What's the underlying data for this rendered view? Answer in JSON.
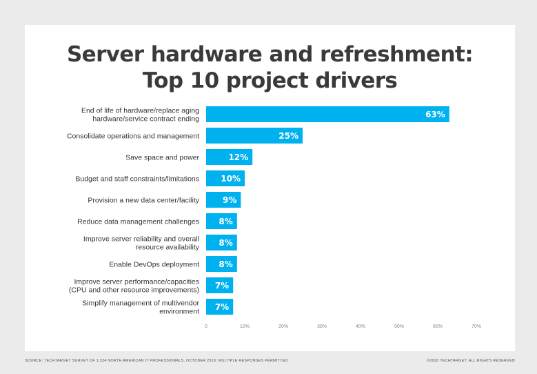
{
  "chart_data": {
    "type": "bar",
    "orientation": "horizontal",
    "title_lines": [
      "Server hardware and refreshment:",
      "Top 10 project drivers"
    ],
    "categories": [
      [
        "End of life of hardware/replace aging",
        "hardware/service contract ending"
      ],
      [
        "Consolidate operations and management"
      ],
      [
        "Save space and power"
      ],
      [
        "Budget and staff constraints/limitations"
      ],
      [
        "Provision a new data center/facility"
      ],
      [
        "Reduce data management challenges"
      ],
      [
        "Improve server reliability and overall",
        "resource availability"
      ],
      [
        "Enable DevOps deployment"
      ],
      [
        "Improve server performance/capacities",
        "(CPU and other resource improvements)"
      ],
      [
        "Simplify management of multivendor",
        "environment"
      ]
    ],
    "values": [
      63,
      25,
      12,
      10,
      9,
      8,
      8,
      8,
      7,
      7
    ],
    "value_labels": [
      "63%",
      "25%",
      "12%",
      "10%",
      "9%",
      "8%",
      "8%",
      "8%",
      "7%",
      "7%"
    ],
    "xlim": [
      0,
      70
    ],
    "xticks": [
      0,
      10,
      20,
      30,
      40,
      50,
      60,
      70
    ],
    "xtick_labels": [
      "0",
      "10%",
      "20%",
      "30%",
      "40%",
      "50%",
      "60%",
      "70%"
    ],
    "grid": false,
    "bar_color": "#00b1f0"
  },
  "footer": {
    "source": "SOURCE: TECHTARGET SURVEY OF 1,324 NORTH AMERICAN IT PROFESSIONALS, OCTOBER 2019; MULTIPLE RESPONSES PERMITTED",
    "copyright": "©2020 TECHTARGET. ALL RIGHTS RESERVED"
  }
}
